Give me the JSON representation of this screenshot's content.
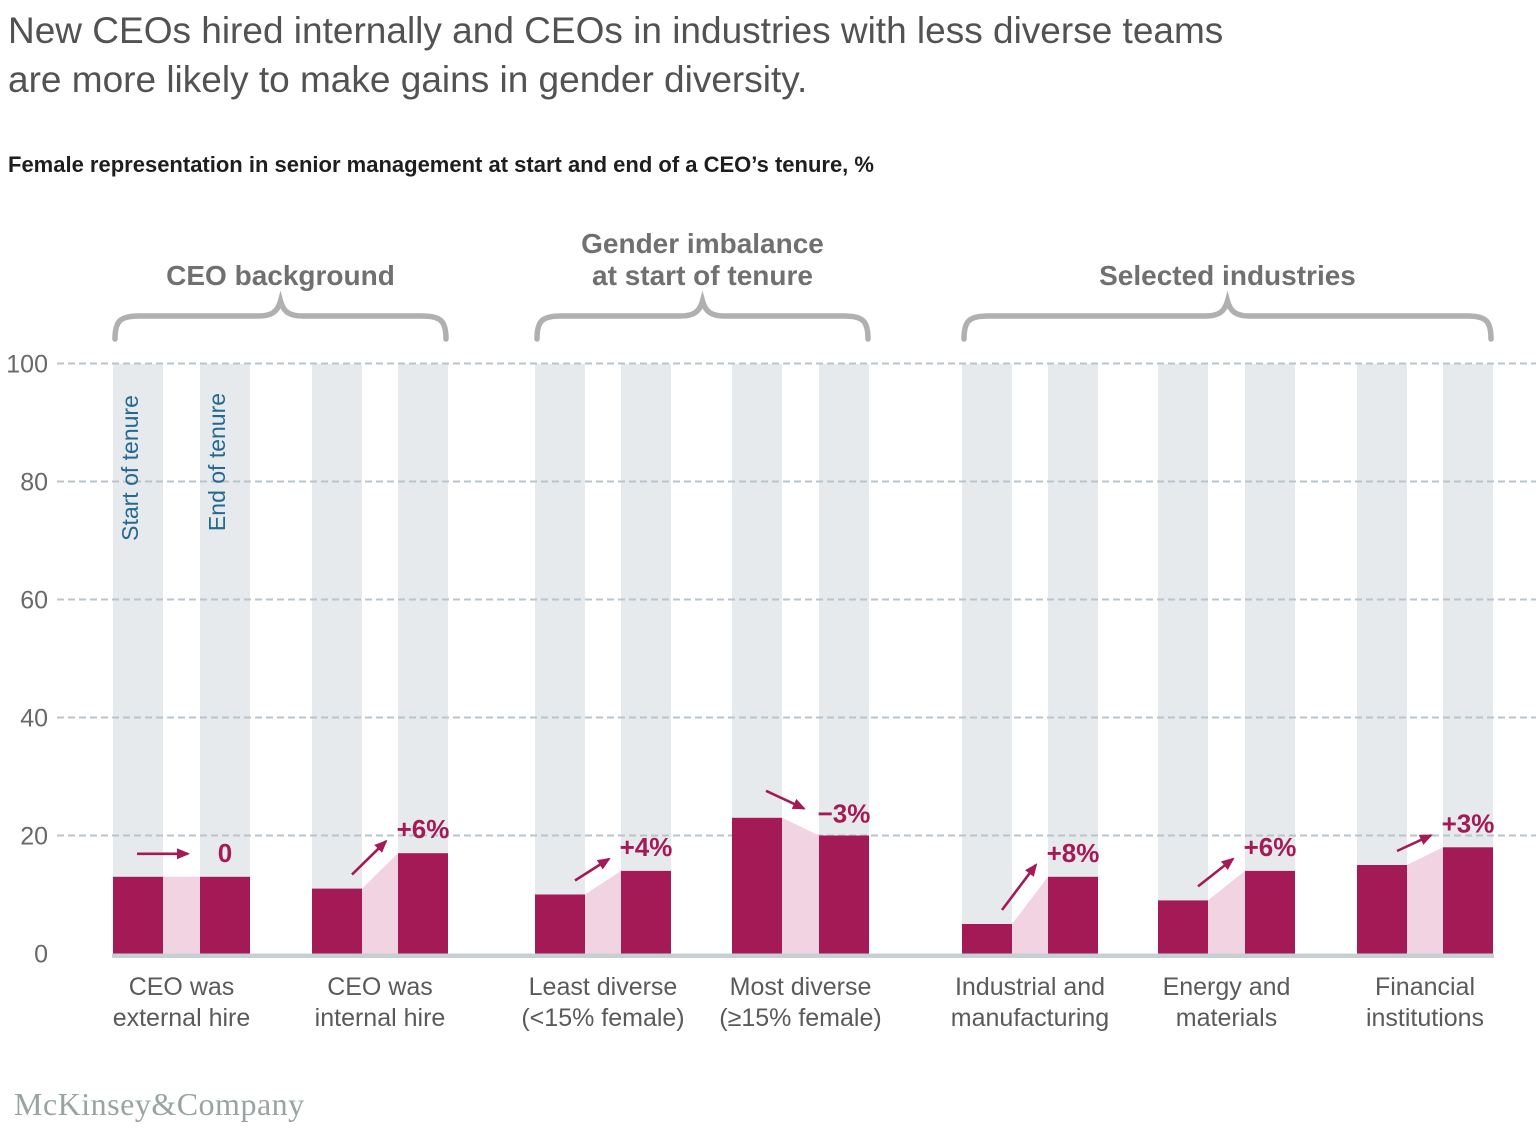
{
  "header": {
    "title_line1": "New CEOs hired internally and CEOs in industries with less diverse teams",
    "title_line2": "are more likely to make gains in gender diversity.",
    "subtitle": "Female representation in senior management at start and end of a CEO’s tenure, %"
  },
  "footer": {
    "logo": "McKinsey&Company"
  },
  "colors": {
    "bar_dark": "#a31a56",
    "connector_pink": "#f1d3e1",
    "column_bg": "#e6eaec",
    "gridline": "#b9c4cc",
    "baseline": "#c6cfd5",
    "tenure_label_blue": "#26698e",
    "annotation": "#a31a56",
    "brace_gray": "#b0b0b0"
  },
  "chart_data": {
    "type": "bar",
    "unit": "%",
    "ylabel": "Female representation in senior management, %",
    "ylim": [
      0,
      100
    ],
    "yticks": [
      0,
      20,
      40,
      60,
      80,
      100
    ],
    "grid": "horizontal dashed",
    "series_labels": [
      "Start of tenure",
      "End of tenure"
    ],
    "groups": [
      {
        "group_label_lines": [
          "CEO background"
        ],
        "categories": [
          {
            "label_lines": [
              "CEO was",
              "external hire"
            ],
            "start_of_tenure": 13,
            "end_of_tenure": 13,
            "change_label": "0",
            "arrow": "flat"
          },
          {
            "label_lines": [
              "CEO was",
              "internal hire"
            ],
            "start_of_tenure": 11,
            "end_of_tenure": 17,
            "change_label": "+6%",
            "arrow": "up"
          }
        ]
      },
      {
        "group_label_lines": [
          "Gender imbalance",
          "at start of tenure"
        ],
        "categories": [
          {
            "label_lines": [
              "Least diverse",
              "(<15% female)"
            ],
            "start_of_tenure": 10,
            "end_of_tenure": 14,
            "change_label": "+4%",
            "arrow": "up"
          },
          {
            "label_lines": [
              "Most diverse",
              "(≥15% female)"
            ],
            "start_of_tenure": 23,
            "end_of_tenure": 20,
            "change_label": "−3%",
            "arrow": "down"
          }
        ]
      },
      {
        "group_label_lines": [
          "Selected industries"
        ],
        "categories": [
          {
            "label_lines": [
              "Industrial and",
              "manufacturing"
            ],
            "start_of_tenure": 5,
            "end_of_tenure": 13,
            "change_label": "+8%",
            "arrow": "up"
          },
          {
            "label_lines": [
              "Energy and",
              "materials"
            ],
            "start_of_tenure": 9,
            "end_of_tenure": 14,
            "change_label": "+6%",
            "arrow": "up"
          },
          {
            "label_lines": [
              "Financial",
              "institutions"
            ],
            "start_of_tenure": 15,
            "end_of_tenure": 18,
            "change_label": "+3%",
            "arrow": "up"
          }
        ]
      }
    ]
  }
}
